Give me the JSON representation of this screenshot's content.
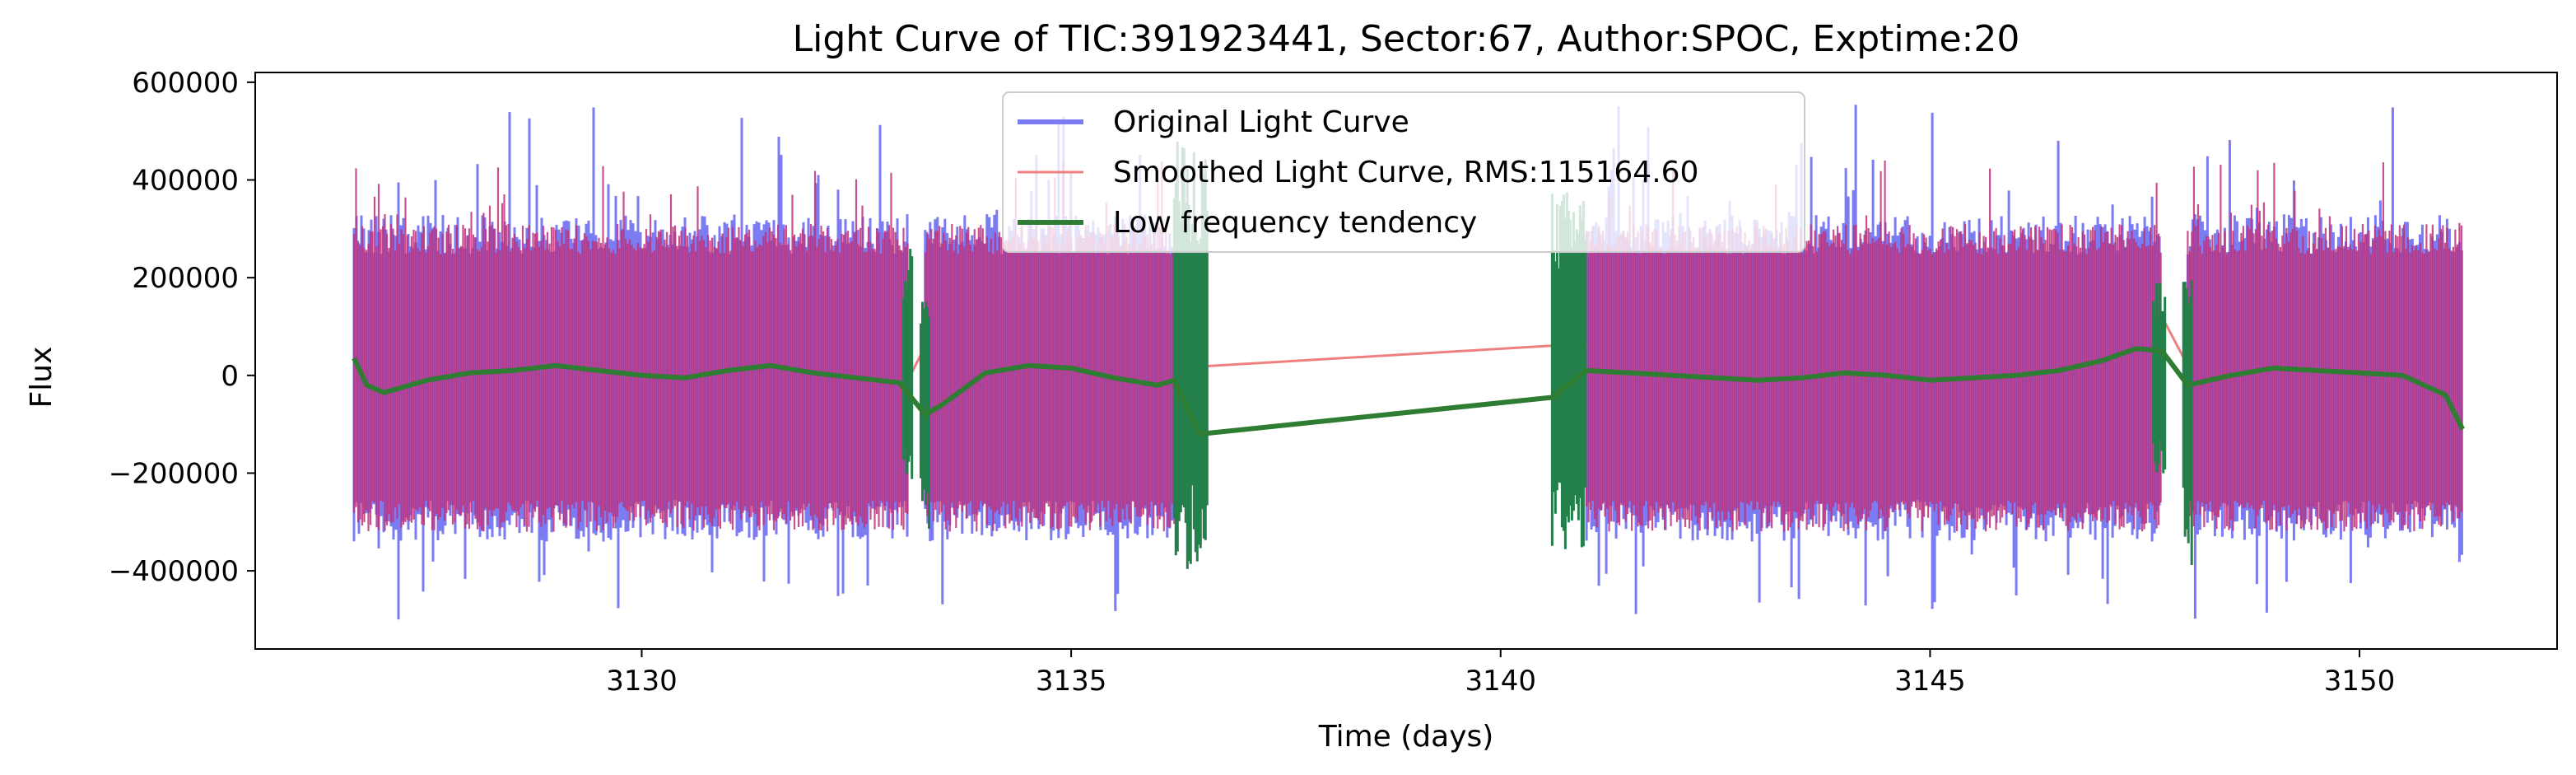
{
  "chart_data": {
    "type": "line",
    "title": "Light Curve of TIC:391923441, Sector:67, Author:SPOC, Exptime:20",
    "xlabel": "Time (days)",
    "ylabel": "Flux",
    "xlim": [
      3125.5,
      3152.3
    ],
    "ylim": [
      -560000,
      620000
    ],
    "xticks": [
      3130,
      3135,
      3140,
      3145,
      3150
    ],
    "yticks": [
      -400000,
      -200000,
      0,
      200000,
      400000,
      600000
    ],
    "xtick_labels": [
      "3130",
      "3135",
      "3140",
      "3145",
      "3150"
    ],
    "ytick_labels": [
      "−400000",
      "−200000",
      "0",
      "200000",
      "400000",
      "600000"
    ],
    "grid": false,
    "legend_position": "top-center",
    "segments": [
      {
        "start": 3126.65,
        "end": 3133.1
      },
      {
        "start": 3133.3,
        "end": 3136.2
      },
      {
        "start": 3141.0,
        "end": 3147.7
      },
      {
        "start": 3148.0,
        "end": 3151.2
      }
    ],
    "series": [
      {
        "name": "Original Light Curve",
        "color": "#7b7bf2",
        "envelope_upper": 330000,
        "envelope_lower": -340000,
        "peak_max": 560000,
        "peak_min": -500000
      },
      {
        "name": "Smoothed Light Curve, RMS:115164.60",
        "color": "#f08080",
        "envelope_upper": 310000,
        "envelope_lower": -320000
      },
      {
        "name": "Low frequency tendency",
        "color": "#2e7d32",
        "x": [
          3126.65,
          3126.8,
          3127.0,
          3127.5,
          3128.0,
          3128.5,
          3129.0,
          3129.5,
          3130.0,
          3130.5,
          3131.0,
          3131.5,
          3132.0,
          3132.5,
          3133.0,
          3133.3,
          3133.5,
          3134.0,
          3134.5,
          3135.0,
          3135.5,
          3136.0,
          3136.2,
          3136.5,
          3140.6,
          3141.0,
          3141.5,
          3142.0,
          3142.5,
          3143.0,
          3143.5,
          3144.0,
          3144.5,
          3145.0,
          3145.5,
          3146.0,
          3146.5,
          3147.0,
          3147.4,
          3147.7,
          3148.0,
          3148.5,
          3149.0,
          3149.5,
          3150.0,
          3150.5,
          3151.0,
          3151.2
        ],
        "y": [
          35000,
          -20000,
          -35000,
          -10000,
          5000,
          10000,
          20000,
          10000,
          0,
          -5000,
          10000,
          20000,
          5000,
          -5000,
          -15000,
          -80000,
          -60000,
          5000,
          20000,
          15000,
          -5000,
          -20000,
          -10000,
          -120000,
          -45000,
          10000,
          5000,
          0,
          -5000,
          -10000,
          -5000,
          5000,
          0,
          -10000,
          -5000,
          0,
          10000,
          30000,
          55000,
          50000,
          -20000,
          0,
          15000,
          10000,
          5000,
          0,
          -40000,
          -110000
        ]
      }
    ]
  }
}
